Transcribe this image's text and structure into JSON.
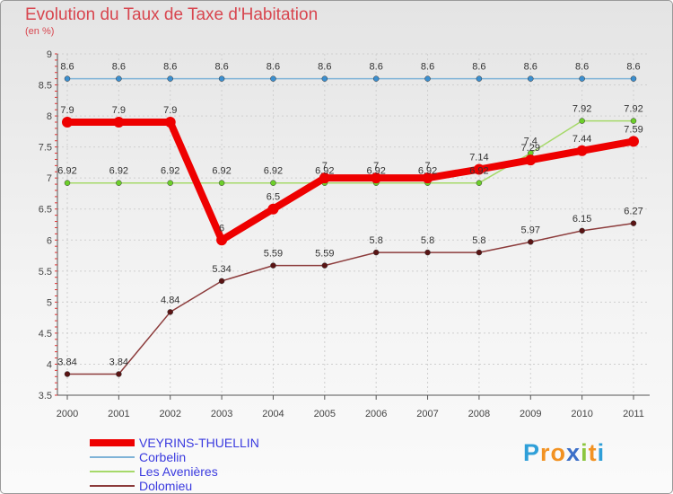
{
  "chart_data": {
    "type": "line",
    "title": "Evolution du Taux de Taxe d'Habitation",
    "subtitle": "(en %)",
    "xlabel": "",
    "ylabel": "",
    "x": [
      "2000",
      "2001",
      "2002",
      "2003",
      "2004",
      "2005",
      "2006",
      "2007",
      "2008",
      "2009",
      "2010",
      "2011"
    ],
    "ylim": [
      3.5,
      9
    ],
    "yticks": [
      "3.5",
      "4",
      "4.5",
      "5",
      "5.5",
      "6",
      "6.5",
      "7",
      "7.5",
      "8",
      "8.5",
      "9"
    ],
    "grid": true,
    "legend_position": "bottom-left",
    "series": [
      {
        "name": "VEYRINS-THUELLIN",
        "color": "#ee0000",
        "values": [
          7.9,
          7.9,
          7.9,
          6,
          6.5,
          7,
          7,
          7,
          7.14,
          7.29,
          7.44,
          7.59
        ],
        "labels": [
          "7.9",
          "7.9",
          "7.9",
          "6",
          "6.5",
          "7",
          "7",
          "7",
          "7.14",
          "7.29",
          "7.44",
          "7.59"
        ]
      },
      {
        "name": "Corbelin",
        "color": "#7fb3d7",
        "marker": "#3c8fcf",
        "values": [
          8.6,
          8.6,
          8.6,
          8.6,
          8.6,
          8.6,
          8.6,
          8.6,
          8.6,
          8.6,
          8.6,
          8.6
        ],
        "labels": [
          "8.6",
          "8.6",
          "8.6",
          "8.6",
          "8.6",
          "8.6",
          "8.6",
          "8.6",
          "8.6",
          "8.6",
          "8.6",
          "8.6"
        ]
      },
      {
        "name": "Les Avenières",
        "color": "#a6d96a",
        "marker": "#6ccf2a",
        "values": [
          6.92,
          6.92,
          6.92,
          6.92,
          6.92,
          6.92,
          6.92,
          6.92,
          6.92,
          7.4,
          7.92,
          7.92
        ],
        "labels": [
          "6.92",
          "6.92",
          "6.92",
          "6.92",
          "6.92",
          "6.92",
          "6.92",
          "6.92",
          "6.92",
          "7.4",
          "7.92",
          "7.92"
        ]
      },
      {
        "name": "Dolomieu",
        "color": "#8c3b3b",
        "marker": "#5a1414",
        "values": [
          3.84,
          3.84,
          4.84,
          5.34,
          5.59,
          5.59,
          5.8,
          5.8,
          5.8,
          5.97,
          6.15,
          6.27
        ],
        "labels": [
          "3.84",
          "3.84",
          "4.84",
          "5.34",
          "5.59",
          "5.59",
          "5.8",
          "5.8",
          "5.8",
          "5.97",
          "6.15",
          "6.27"
        ]
      }
    ]
  },
  "logo": {
    "text": "Proxiti",
    "letters": [
      "P",
      "r",
      "o",
      "x",
      "i",
      "t",
      "i"
    ],
    "colors": [
      "#2f9fd8",
      "#f29222",
      "#f29222",
      "#3c6fc8",
      "#8cc63f",
      "#f29222",
      "#2f9fd8"
    ]
  }
}
